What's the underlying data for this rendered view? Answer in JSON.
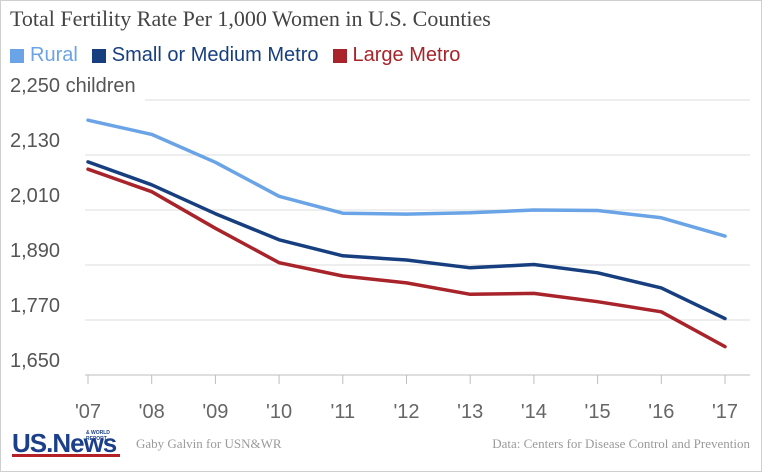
{
  "chart_data": {
    "type": "line",
    "title": "Total Fertility Rate Per 1,000 Women in U.S. Counties",
    "categories": [
      "'07",
      "'08",
      "'09",
      "'10",
      "'11",
      "'12",
      "'13",
      "'14",
      "'15",
      "'16",
      "'17"
    ],
    "y_ticks": [
      "1,650",
      "1,770",
      "1,890",
      "2,010",
      "2,130",
      "2,250 children"
    ],
    "y_tick_values": [
      1650,
      1770,
      1890,
      2010,
      2130,
      2250
    ],
    "ylim": [
      1650,
      2250
    ],
    "grid": true,
    "legend_position": "top-left",
    "series": [
      {
        "name": "Rural",
        "color": "#6aa4e6",
        "values": [
          2206,
          2175,
          2114,
          2040,
          2003,
          2001,
          2004,
          2010,
          2009,
          1993,
          1953
        ]
      },
      {
        "name": "Small or Medium Metro",
        "color": "#173f80",
        "values": [
          2115,
          2065,
          2002,
          1945,
          1910,
          1901,
          1884,
          1891,
          1873,
          1840,
          1773
        ]
      },
      {
        "name": "Large Metro",
        "color": "#a8232a",
        "values": [
          2099,
          2050,
          1970,
          1895,
          1866,
          1851,
          1826,
          1828,
          1810,
          1788,
          1712
        ]
      }
    ]
  },
  "footer": {
    "credit": "Gaby Galvin for USN&WR",
    "source": "Data: Centers for Disease Control and Prevention"
  },
  "logo": {
    "main": "US.News",
    "tag": "& WORLD REPORT"
  }
}
